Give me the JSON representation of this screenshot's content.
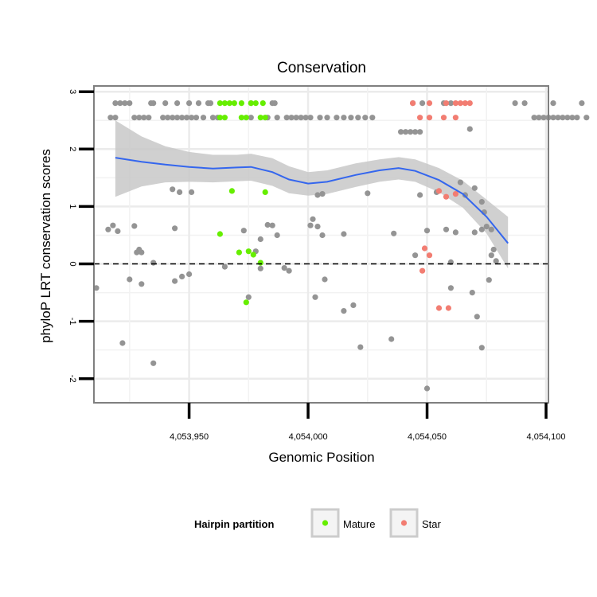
{
  "chart_data": {
    "type": "scatter",
    "title": "Conservation",
    "xlabel": "Genomic Position",
    "ylabel": "phyloP LRT conservation scores",
    "xlim": [
      4053910,
      4054101
    ],
    "ylim": [
      -2.42,
      3.1
    ],
    "x_ticks": [
      4053950,
      4054000,
      4054050,
      4054100
    ],
    "x_tick_labels": [
      "4,053,950",
      "4,054,000",
      "4,054,050",
      "4,054,100"
    ],
    "y_ticks": [
      -2,
      -1,
      0,
      1,
      2,
      3
    ],
    "y_tick_labels": [
      "-2",
      "-1",
      "0",
      "1",
      "2",
      "3"
    ],
    "reference_line": {
      "y": 0,
      "style": "dashed"
    },
    "grid": true,
    "legend": {
      "title": "Hairpin partition",
      "position": "bottom",
      "entries": [
        {
          "label": "Mature",
          "color": "#66ee00"
        },
        {
          "label": "Star",
          "color": "#f27d72"
        }
      ]
    },
    "colors": {
      "Other": "#949494",
      "Mature": "#66ee00",
      "Star": "#f27d72",
      "smooth": "#3466ee",
      "ribbon": "#c8c8c8"
    },
    "series": [
      {
        "name": "Other",
        "points": [
          [
            4053919,
            2.8
          ],
          [
            4053921,
            2.8
          ],
          [
            4053923,
            2.8
          ],
          [
            4053925,
            2.8
          ],
          [
            4053934,
            2.8
          ],
          [
            4053935,
            2.8
          ],
          [
            4053940,
            2.8
          ],
          [
            4053945,
            2.8
          ],
          [
            4053950,
            2.8
          ],
          [
            4053954,
            2.8
          ],
          [
            4053958,
            2.8
          ],
          [
            4053959,
            2.8
          ],
          [
            4053976,
            2.8
          ],
          [
            4053985,
            2.8
          ],
          [
            4053986,
            2.8
          ],
          [
            4054044,
            2.8
          ],
          [
            4054048,
            2.8
          ],
          [
            4054057,
            2.8
          ],
          [
            4054060,
            2.8
          ],
          [
            4054087,
            2.8
          ],
          [
            4054091,
            2.8
          ],
          [
            4054103,
            2.8
          ],
          [
            4054115,
            2.8
          ],
          [
            4053917,
            2.55
          ],
          [
            4053919,
            2.55
          ],
          [
            4053927,
            2.55
          ],
          [
            4053929,
            2.55
          ],
          [
            4053931,
            2.55
          ],
          [
            4053933,
            2.55
          ],
          [
            4053939,
            2.55
          ],
          [
            4053941,
            2.55
          ],
          [
            4053943,
            2.55
          ],
          [
            4053945,
            2.55
          ],
          [
            4053947,
            2.55
          ],
          [
            4053949,
            2.55
          ],
          [
            4053951,
            2.55
          ],
          [
            4053953,
            2.55
          ],
          [
            4053956,
            2.55
          ],
          [
            4053960,
            2.55
          ],
          [
            4053962,
            2.55
          ],
          [
            4053976,
            2.55
          ],
          [
            4053983,
            2.55
          ],
          [
            4053987,
            2.55
          ],
          [
            4053991,
            2.55
          ],
          [
            4053993,
            2.55
          ],
          [
            4053995,
            2.55
          ],
          [
            4053997,
            2.55
          ],
          [
            4053999,
            2.55
          ],
          [
            4054001,
            2.55
          ],
          [
            4054005,
            2.55
          ],
          [
            4054008,
            2.55
          ],
          [
            4054012,
            2.55
          ],
          [
            4054015,
            2.55
          ],
          [
            4054018,
            2.55
          ],
          [
            4054021,
            2.55
          ],
          [
            4054024,
            2.55
          ],
          [
            4054027,
            2.55
          ],
          [
            4054095,
            2.55
          ],
          [
            4054097,
            2.55
          ],
          [
            4054099,
            2.55
          ],
          [
            4054101,
            2.55
          ],
          [
            4054103,
            2.55
          ],
          [
            4054105,
            2.55
          ],
          [
            4054107,
            2.55
          ],
          [
            4054109,
            2.55
          ],
          [
            4054111,
            2.55
          ],
          [
            4054113,
            2.55
          ],
          [
            4054117,
            2.55
          ],
          [
            4054039,
            2.3
          ],
          [
            4054041,
            2.3
          ],
          [
            4054043,
            2.3
          ],
          [
            4054045,
            2.3
          ],
          [
            4054047,
            2.3
          ],
          [
            4054068,
            2.35
          ],
          [
            4054006,
            1.22
          ],
          [
            4053943,
            1.3
          ],
          [
            4053946,
            1.25
          ],
          [
            4053951,
            1.25
          ],
          [
            4054004,
            1.2
          ],
          [
            4054025,
            1.23
          ],
          [
            4054047,
            1.2
          ],
          [
            4054054,
            1.25
          ],
          [
            4054064,
            1.42
          ],
          [
            4054066,
            1.2
          ],
          [
            4054070,
            1.32
          ],
          [
            4054073,
            1.08
          ],
          [
            4054074,
            0.9
          ],
          [
            4054077,
            0.6
          ],
          [
            4054078,
            0.25
          ],
          [
            4053916,
            0.6
          ],
          [
            4053918,
            0.67
          ],
          [
            4053920,
            0.57
          ],
          [
            4053927,
            0.66
          ],
          [
            4053928,
            0.2
          ],
          [
            4053929,
            0.25
          ],
          [
            4053930,
            0.2
          ],
          [
            4053944,
            0.62
          ],
          [
            4053973,
            0.58
          ],
          [
            4053978,
            0.22
          ],
          [
            4053980,
            0.43
          ],
          [
            4053983,
            0.68
          ],
          [
            4053985,
            0.67
          ],
          [
            4053987,
            0.5
          ],
          [
            4054002,
            0.78
          ],
          [
            4054004,
            0.65
          ],
          [
            4054006,
            0.5
          ],
          [
            4054015,
            0.52
          ],
          [
            4054036,
            0.53
          ],
          [
            4054050,
            0.58
          ],
          [
            4054058,
            0.6
          ],
          [
            4054062,
            0.55
          ],
          [
            4054070,
            0.55
          ],
          [
            4054073,
            0.6
          ],
          [
            4054075,
            0.65
          ],
          [
            4054077,
            0.15
          ],
          [
            4053911,
            -0.42
          ],
          [
            4053925,
            -0.27
          ],
          [
            4053930,
            -0.35
          ],
          [
            4053935,
            0.02
          ],
          [
            4053944,
            -0.3
          ],
          [
            4053947,
            -0.22
          ],
          [
            4053950,
            -0.18
          ],
          [
            4053965,
            -0.05
          ],
          [
            4053990,
            -0.07
          ],
          [
            4053992,
            -0.12
          ],
          [
            4054003,
            -0.58
          ],
          [
            4054007,
            -0.27
          ],
          [
            4054015,
            -0.82
          ],
          [
            4054019,
            -0.72
          ],
          [
            4054022,
            -1.45
          ],
          [
            4054035,
            -1.31
          ],
          [
            4054060,
            -0.42
          ],
          [
            4054069,
            -0.5
          ],
          [
            4054071,
            -0.92
          ],
          [
            4054073,
            -1.46
          ],
          [
            4054076,
            -0.28
          ],
          [
            4054079,
            0.05
          ],
          [
            4053922,
            -1.38
          ],
          [
            4053935,
            -1.73
          ],
          [
            4053975,
            -0.58
          ],
          [
            4053980,
            -0.08
          ],
          [
            4054001,
            0.67
          ],
          [
            4054045,
            0.15
          ],
          [
            4054060,
            0.03
          ],
          [
            4054050,
            -2.17
          ]
        ]
      },
      {
        "name": "Mature",
        "points": [
          [
            4053963,
            2.8
          ],
          [
            4053965,
            2.8
          ],
          [
            4053967,
            2.8
          ],
          [
            4053969,
            2.8
          ],
          [
            4053972,
            2.8
          ],
          [
            4053976,
            2.8
          ],
          [
            4053978,
            2.8
          ],
          [
            4053981,
            2.8
          ],
          [
            4053963,
            2.55
          ],
          [
            4053965,
            2.55
          ],
          [
            4053972,
            2.55
          ],
          [
            4053974,
            2.55
          ],
          [
            4053980,
            2.55
          ],
          [
            4053982,
            2.55
          ],
          [
            4053968,
            1.27
          ],
          [
            4053982,
            1.25
          ],
          [
            4053963,
            0.52
          ],
          [
            4053971,
            0.2
          ],
          [
            4053975,
            0.22
          ],
          [
            4053977,
            0.16
          ],
          [
            4053980,
            0.02
          ],
          [
            4053974,
            -0.67
          ]
        ]
      },
      {
        "name": "Star",
        "points": [
          [
            4054044,
            2.8
          ],
          [
            4054051,
            2.8
          ],
          [
            4054058,
            2.8
          ],
          [
            4054062,
            2.8
          ],
          [
            4054064,
            2.8
          ],
          [
            4054066,
            2.8
          ],
          [
            4054068,
            2.8
          ],
          [
            4054047,
            2.55
          ],
          [
            4054051,
            2.55
          ],
          [
            4054057,
            2.55
          ],
          [
            4054062,
            2.55
          ],
          [
            4054055,
            1.27
          ],
          [
            4054058,
            1.17
          ],
          [
            4054062,
            1.22
          ],
          [
            4054049,
            0.27
          ],
          [
            4054051,
            0.15
          ],
          [
            4054048,
            -0.12
          ],
          [
            4054055,
            -0.77
          ],
          [
            4054059,
            -0.77
          ]
        ]
      }
    ],
    "smooth_line": [
      [
        4053919,
        1.85
      ],
      [
        4053930,
        1.78
      ],
      [
        4053940,
        1.73
      ],
      [
        4053950,
        1.69
      ],
      [
        4053960,
        1.66
      ],
      [
        4053970,
        1.68
      ],
      [
        4053976,
        1.69
      ],
      [
        4053985,
        1.6
      ],
      [
        4053992,
        1.47
      ],
      [
        4054000,
        1.4
      ],
      [
        4054008,
        1.43
      ],
      [
        4054020,
        1.55
      ],
      [
        4054030,
        1.63
      ],
      [
        4054038,
        1.67
      ],
      [
        4054045,
        1.62
      ],
      [
        4054055,
        1.46
      ],
      [
        4054065,
        1.22
      ],
      [
        4054075,
        0.82
      ],
      [
        4054084,
        0.36
      ]
    ],
    "ribbon_upper": [
      [
        4053919,
        2.5
      ],
      [
        4053930,
        2.22
      ],
      [
        4053940,
        2.05
      ],
      [
        4053950,
        1.95
      ],
      [
        4053960,
        1.9
      ],
      [
        4053970,
        1.9
      ],
      [
        4053976,
        1.92
      ],
      [
        4053985,
        1.84
      ],
      [
        4053992,
        1.7
      ],
      [
        4054000,
        1.6
      ],
      [
        4054008,
        1.63
      ],
      [
        4054020,
        1.75
      ],
      [
        4054030,
        1.82
      ],
      [
        4054038,
        1.86
      ],
      [
        4054045,
        1.82
      ],
      [
        4054055,
        1.67
      ],
      [
        4054065,
        1.45
      ],
      [
        4054075,
        1.12
      ],
      [
        4054084,
        0.82
      ]
    ],
    "ribbon_lower": [
      [
        4053919,
        1.17
      ],
      [
        4053930,
        1.35
      ],
      [
        4053940,
        1.42
      ],
      [
        4053950,
        1.43
      ],
      [
        4053960,
        1.42
      ],
      [
        4053970,
        1.44
      ],
      [
        4053976,
        1.45
      ],
      [
        4053985,
        1.36
      ],
      [
        4053992,
        1.23
      ],
      [
        4054000,
        1.19
      ],
      [
        4054008,
        1.22
      ],
      [
        4054020,
        1.34
      ],
      [
        4054030,
        1.43
      ],
      [
        4054038,
        1.47
      ],
      [
        4054045,
        1.43
      ],
      [
        4054055,
        1.25
      ],
      [
        4054065,
        0.98
      ],
      [
        4054075,
        0.53
      ],
      [
        4054084,
        -0.08
      ]
    ]
  }
}
